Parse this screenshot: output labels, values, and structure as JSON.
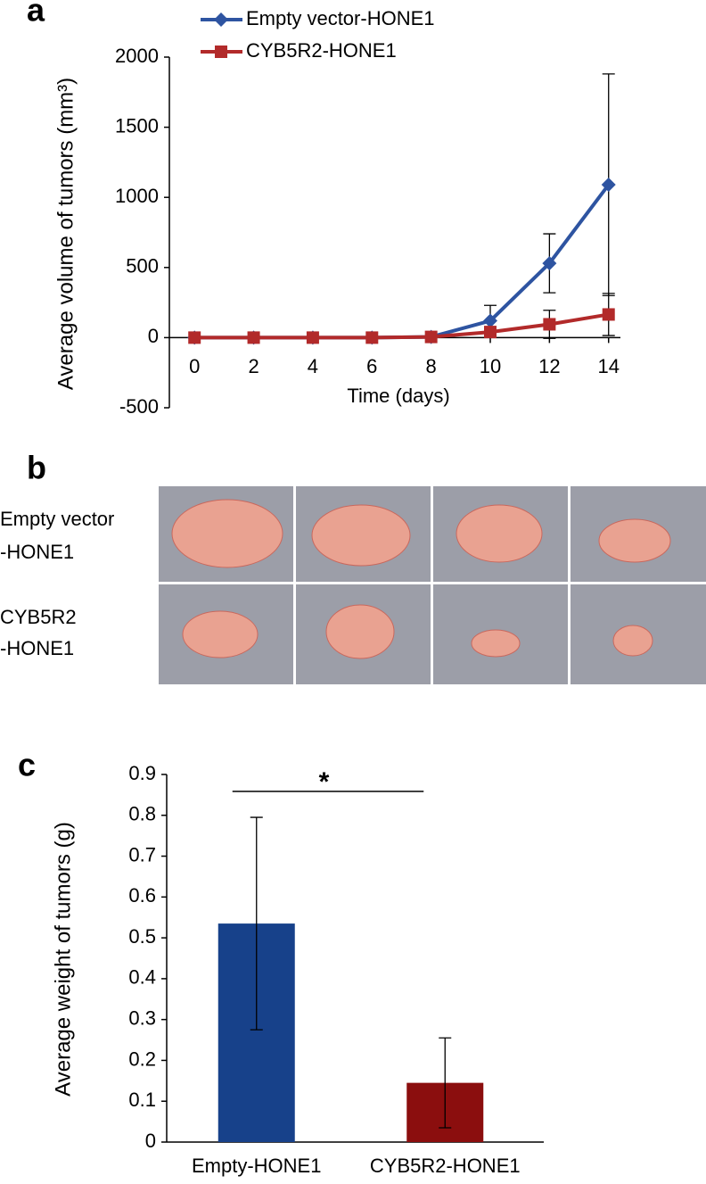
{
  "panels": [
    "a",
    "b",
    "c"
  ],
  "photo_panel": {
    "row_labels": [
      [
        "Empty vector",
        "-HONE1"
      ],
      [
        "CYB5R2",
        "-HONE1"
      ]
    ]
  },
  "chart_data": [
    {
      "type": "line",
      "y_label": "Average volume of tumors (mm³)",
      "x_label": "Time (days)",
      "x": [
        0,
        2,
        4,
        6,
        8,
        10,
        12,
        14
      ],
      "series": [
        {
          "name": "Empty vector-HONE1",
          "color": "#2e54a1",
          "marker": "diamond",
          "values": [
            0,
            0,
            0,
            0,
            5,
            120,
            530,
            1090
          ],
          "errors": [
            0,
            0,
            0,
            0,
            5,
            110,
            210,
            790
          ]
        },
        {
          "name": "CYB5R2-HONE1",
          "color": "#b22a2a",
          "marker": "square",
          "values": [
            0,
            0,
            0,
            0,
            5,
            40,
            95,
            165
          ],
          "errors": [
            0,
            0,
            0,
            0,
            5,
            30,
            100,
            150
          ]
        }
      ],
      "xlim": [
        -0.85,
        14.4
      ],
      "xticks": [
        0,
        2,
        4,
        6,
        8,
        10,
        12,
        14
      ],
      "ylim": [
        -500,
        2000
      ],
      "yticks": [
        -500,
        0,
        500,
        1000,
        1500,
        2000
      ],
      "legend": "top-left"
    },
    {
      "type": "bar",
      "y_label": "Average weight of tumors (g)",
      "categories": [
        "Empty-HONE1",
        "CYB5R2-HONE1"
      ],
      "values": [
        0.535,
        0.145
      ],
      "errors": [
        0.26,
        0.11
      ],
      "colors": [
        "#17418a",
        "#8b0e0e"
      ],
      "ylim": [
        0,
        0.9
      ],
      "yticks": [
        0,
        0.1,
        0.2,
        0.3,
        0.4,
        0.5,
        0.6,
        0.7,
        0.8,
        0.9
      ],
      "annotation": "*"
    }
  ]
}
